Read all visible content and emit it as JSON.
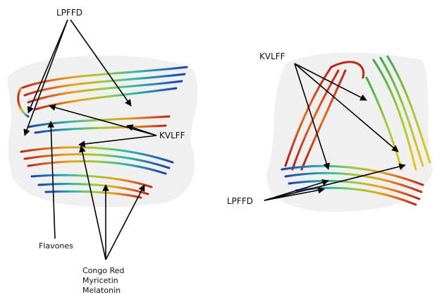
{
  "left_panel": {
    "labels": [
      "LPFFD",
      "KVLFF",
      "Flavones",
      "Congo Red",
      "Myricetin",
      "Melatonin"
    ]
  },
  "right_panel": {
    "labels": [
      "KVLFF",
      "LPFFD"
    ]
  }
}
